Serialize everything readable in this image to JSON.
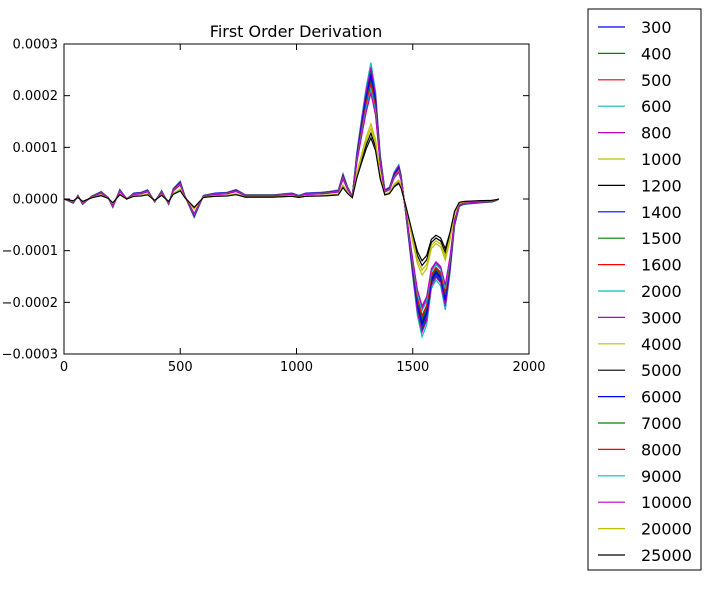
{
  "chart_data": {
    "type": "line",
    "title": "First Order Derivation",
    "xlabel": "",
    "ylabel": "",
    "xlim": [
      0,
      2000
    ],
    "ylim": [
      -0.0003,
      0.0003
    ],
    "xticks": [
      "0",
      "500",
      "1000",
      "1500",
      "2000"
    ],
    "yticks": [
      "−0.0003",
      "−0.0002",
      "−0.0001",
      "0.0000",
      "0.0001",
      "0.0002",
      "0.0003"
    ],
    "legend_position": "outside-right",
    "grid": false,
    "x": [
      0,
      40,
      60,
      80,
      120,
      160,
      190,
      210,
      240,
      270,
      300,
      330,
      360,
      390,
      420,
      450,
      470,
      500,
      520,
      560,
      600,
      650,
      700,
      740,
      780,
      830,
      900,
      980,
      1010,
      1040,
      1100,
      1140,
      1180,
      1200,
      1220,
      1240,
      1260,
      1280,
      1300,
      1320,
      1340,
      1360,
      1380,
      1400,
      1420,
      1440,
      1450,
      1470,
      1500,
      1520,
      1540,
      1560,
      1580,
      1600,
      1620,
      1640,
      1660,
      1680,
      1700,
      1720,
      1760,
      1800,
      1840,
      1860,
      1870
    ],
    "base_profile": [
      0.0,
      -0.14,
      0.12,
      -0.18,
      0.1,
      0.25,
      0.05,
      -0.28,
      0.32,
      0.0,
      0.2,
      0.22,
      0.31,
      -0.1,
      0.28,
      -0.18,
      0.35,
      0.6,
      0.1,
      -0.62,
      0.12,
      0.2,
      0.22,
      0.32,
      0.14,
      0.14,
      0.14,
      0.2,
      0.12,
      0.2,
      0.22,
      0.25,
      0.3,
      0.85,
      0.4,
      0.1,
      1.6,
      2.7,
      3.75,
      4.55,
      3.6,
      1.5,
      0.3,
      0.4,
      0.9,
      1.15,
      0.8,
      -0.5,
      -2.6,
      -3.9,
      -4.6,
      -4.2,
      -3.0,
      -2.7,
      -2.9,
      -3.7,
      -2.5,
      -0.9,
      -0.25,
      -0.18,
      -0.15,
      -0.12,
      -0.1,
      -0.05,
      0.0
    ],
    "series": [
      {
        "name": "300",
        "color": "#0000ff",
        "scale": 5.5e-05
      },
      {
        "name": "400",
        "color": "#008000",
        "scale": 5.4e-05
      },
      {
        "name": "500",
        "color": "#ff0000",
        "scale": 5.3e-05
      },
      {
        "name": "600",
        "color": "#00bfbf",
        "scale": 5.8e-05
      },
      {
        "name": "800",
        "color": "#bf00bf",
        "scale": 5.6e-05
      },
      {
        "name": "1000",
        "color": "#bfbf00",
        "scale": 5.2e-05
      },
      {
        "name": "1200",
        "color": "#000000",
        "scale": 5e-05
      },
      {
        "name": "1400",
        "color": "#0000ff",
        "scale": 5.3e-05
      },
      {
        "name": "1500",
        "color": "#008000",
        "scale": 5.1e-05
      },
      {
        "name": "1600",
        "color": "#ff0000",
        "scale": 5e-05
      },
      {
        "name": "2000",
        "color": "#00bfbf",
        "scale": 4.9e-05
      },
      {
        "name": "3000",
        "color": "#bf00bf",
        "scale": 4.6e-05
      },
      {
        "name": "4000",
        "color": "#bfbf00",
        "scale": 3.2e-05
      },
      {
        "name": "5000",
        "color": "#000000",
        "scale": 2.8e-05
      },
      {
        "name": "6000",
        "color": "#0000ff",
        "scale": 5.2e-05
      },
      {
        "name": "7000",
        "color": "#008000",
        "scale": 5e-05
      },
      {
        "name": "8000",
        "color": "#ff0000",
        "scale": 4.9e-05
      },
      {
        "name": "9000",
        "color": "#00bfbf",
        "scale": 4.7e-05
      },
      {
        "name": "10000",
        "color": "#bf00bf",
        "scale": 4.5e-05
      },
      {
        "name": "20000",
        "color": "#bfbf00",
        "scale": 3e-05
      },
      {
        "name": "25000",
        "color": "#000000",
        "scale": 2.6e-05
      }
    ]
  }
}
